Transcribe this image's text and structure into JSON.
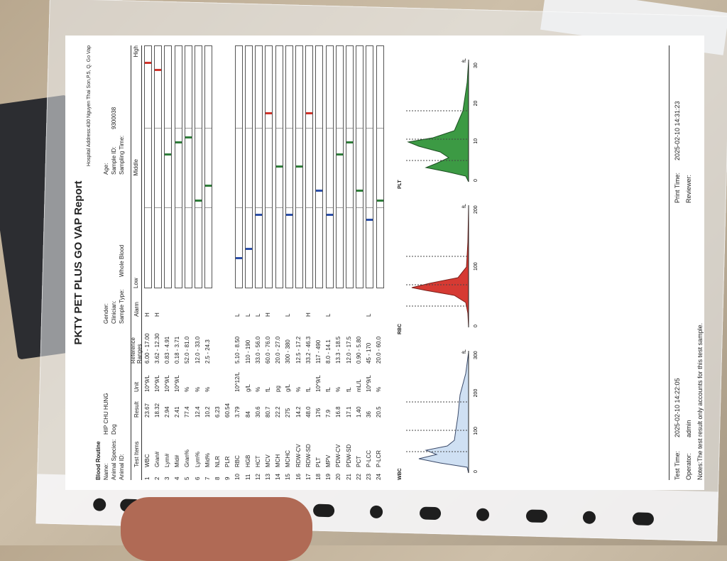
{
  "report": {
    "title": "PKTY PET PLUS GO VAP Report",
    "address": "Hospital Address:430 Nguyen Thai Son,P.5, Q. Go Vap",
    "section": "Blood Routine",
    "name_label": "Name:",
    "name": "HIP CHU HUNG",
    "species_label": "Animal Species:",
    "species": "Dog",
    "animal_id_label": "Animal ID:",
    "gender_label": "Gender:",
    "clinician_label": "Clinician:",
    "sample_type_label": "Sample Type:",
    "sample_type": "Whole Blood",
    "age_label": "Age:",
    "sample_id_label": "Sample ID:",
    "sample_id": "9300038",
    "sampling_time_label": "Sampling Time:"
  },
  "columns": {
    "test_items": "Test Items",
    "result": "Result",
    "unit": "Unit",
    "ref": "Reference Ranges",
    "alarm": "Alarm",
    "low": "Low",
    "middle": "Middle",
    "high": "High"
  },
  "rows": [
    {
      "n": "1",
      "item": "WBC",
      "result": "23.67",
      "unit": "10^9/L",
      "ref": "6.00 - 17.00",
      "alarm": "H",
      "level": 0.93,
      "color": "#d0342c"
    },
    {
      "n": "2",
      "item": "Gran#",
      "result": "18.32",
      "unit": "10^9/L",
      "ref": "3.62 - 12.30",
      "alarm": "H",
      "level": 0.9,
      "color": "#d0342c"
    },
    {
      "n": "3",
      "item": "Lym#",
      "result": "2.94",
      "unit": "10^9/L",
      "ref": "0.83 - 4.91",
      "alarm": "",
      "level": 0.55,
      "color": "#2f7d3a"
    },
    {
      "n": "4",
      "item": "Mid#",
      "result": "2.41",
      "unit": "10^9/L",
      "ref": "0.18 - 3.71",
      "alarm": "",
      "level": 0.6,
      "color": "#2f7d3a"
    },
    {
      "n": "5",
      "item": "Gran%",
      "result": "77.4",
      "unit": "%",
      "ref": "52.0 - 81.0",
      "alarm": "",
      "level": 0.62,
      "color": "#2f7d3a"
    },
    {
      "n": "6",
      "item": "Lym%",
      "result": "12.4",
      "unit": "%",
      "ref": "12.0 - 33.0",
      "alarm": "",
      "level": 0.36,
      "color": "#2f7d3a"
    },
    {
      "n": "7",
      "item": "Mid%",
      "result": "10.2",
      "unit": "%",
      "ref": "2.5 - 24.3",
      "alarm": "",
      "level": 0.42,
      "color": "#2f7d3a"
    },
    {
      "n": "8",
      "item": "NLR",
      "result": "6.23",
      "unit": "",
      "ref": "",
      "alarm": "",
      "level": null,
      "color": ""
    },
    {
      "n": "9",
      "item": "PLR",
      "result": "60.54",
      "unit": "",
      "ref": "",
      "alarm": "",
      "level": null,
      "color": ""
    },
    {
      "n": "10",
      "item": "RBC",
      "result": "3.79",
      "unit": "10^12/L",
      "ref": "5.10 - 8.50",
      "alarm": "L",
      "level": 0.12,
      "color": "#2c4fa8"
    },
    {
      "n": "11",
      "item": "HGB",
      "result": "84",
      "unit": "g/L",
      "ref": "110 - 190",
      "alarm": "L",
      "level": 0.16,
      "color": "#2c4fa8"
    },
    {
      "n": "12",
      "item": "HCT",
      "result": "30.6",
      "unit": "%",
      "ref": "33.0 - 56.0",
      "alarm": "L",
      "level": 0.3,
      "color": "#2c4fa8"
    },
    {
      "n": "13",
      "item": "MCV",
      "result": "80.7",
      "unit": "fL",
      "ref": "60.0 - 76.0",
      "alarm": "H",
      "level": 0.72,
      "color": "#d0342c"
    },
    {
      "n": "14",
      "item": "MCH",
      "result": "22.2",
      "unit": "pg",
      "ref": "20.0 - 27.0",
      "alarm": "",
      "level": 0.5,
      "color": "#2f7d3a"
    },
    {
      "n": "15",
      "item": "MCHC",
      "result": "275",
      "unit": "g/L",
      "ref": "300 - 380",
      "alarm": "L",
      "level": 0.3,
      "color": "#2c4fa8"
    },
    {
      "n": "16",
      "item": "RDW-CV",
      "result": "14.2",
      "unit": "%",
      "ref": "12.5 - 17.2",
      "alarm": "",
      "level": 0.5,
      "color": "#2f7d3a"
    },
    {
      "n": "17",
      "item": "RDW-SD",
      "result": "48.0",
      "unit": "fL",
      "ref": "33.2 - 46.3",
      "alarm": "H",
      "level": 0.72,
      "color": "#d0342c"
    },
    {
      "n": "18",
      "item": "PLT",
      "result": "176",
      "unit": "10^9/L",
      "ref": "117 - 490",
      "alarm": "",
      "level": 0.4,
      "color": "#2c4fa8"
    },
    {
      "n": "19",
      "item": "MPV",
      "result": "7.9",
      "unit": "fL",
      "ref": "8.0 - 14.1",
      "alarm": "L",
      "level": 0.3,
      "color": "#2c4fa8"
    },
    {
      "n": "20",
      "item": "PDW-CV",
      "result": "16.8",
      "unit": "%",
      "ref": "13.3 - 18.5",
      "alarm": "",
      "level": 0.55,
      "color": "#2f7d3a"
    },
    {
      "n": "21",
      "item": "PDW-SD",
      "result": "17.1",
      "unit": "fL",
      "ref": "12.0 - 17.5",
      "alarm": "",
      "level": 0.6,
      "color": "#2f7d3a"
    },
    {
      "n": "22",
      "item": "PCT",
      "result": "1.40",
      "unit": "mL/L",
      "ref": "0.90 - 5.80",
      "alarm": "",
      "level": 0.4,
      "color": "#2f7d3a"
    },
    {
      "n": "23",
      "item": "P-LCC",
      "result": "36",
      "unit": "10^9/L",
      "ref": "45 - 170",
      "alarm": "L",
      "level": 0.28,
      "color": "#2c4fa8"
    },
    {
      "n": "24",
      "item": "P-LCR",
      "result": "20.5",
      "unit": "%",
      "ref": "20.0 - 60.0",
      "alarm": "",
      "level": 0.36,
      "color": "#2f7d3a"
    }
  ],
  "histograms": [
    {
      "title": "WBC",
      "unit": "fL",
      "ticks": [
        "0",
        "100",
        "200",
        "300"
      ],
      "fill": "#cfe0f3",
      "stroke": "#3a4a6a"
    },
    {
      "title": "RBC",
      "unit": "fL",
      "ticks": [
        "0",
        "100",
        "200"
      ],
      "fill": "#d63a33",
      "stroke": "#7a1f1a"
    },
    {
      "title": "PLT",
      "unit": "fL",
      "ticks": [
        "0",
        "10",
        "20",
        "30"
      ],
      "fill": "#3c9a44",
      "stroke": "#1c4f22"
    }
  ],
  "footer": {
    "test_time_label": "Test Time:",
    "test_time": "2025-02-10 14:22:05",
    "operator_label": "Operator:",
    "operator": "admin",
    "print_time_label": "Print Time:",
    "print_time": "2025-02-10 14:31:23",
    "reviewer_label": "Reviewer:",
    "notes": "Notes:The test result only accounts for this test sample."
  }
}
